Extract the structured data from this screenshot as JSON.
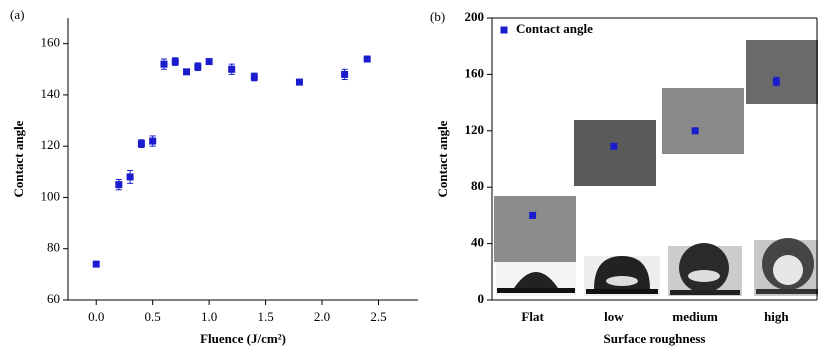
{
  "chart_data": [
    {
      "type": "scatter",
      "label": "(a)",
      "x_label": "Fluence (J/cm²)",
      "y_label": "Contact angle",
      "series": [
        {
          "color": "#1c1ccf",
          "x": [
            0.0,
            0.2,
            0.3,
            0.4,
            0.5,
            0.6,
            0.7,
            0.8,
            0.9,
            1.0,
            1.2,
            1.4,
            1.8,
            2.2,
            2.4
          ],
          "values": [
            74,
            105,
            108,
            121,
            122,
            152,
            153,
            149,
            151,
            153,
            150,
            147,
            145,
            148,
            154
          ],
          "errors": [
            1,
            2,
            2.5,
            1.5,
            2,
            2,
            1.5,
            1,
            1.5,
            1,
            2,
            1.5,
            1,
            2,
            1
          ]
        }
      ],
      "xlim": [
        -0.25,
        2.85
      ],
      "ylim": [
        60,
        170
      ],
      "xticks": [
        {
          "value": 0,
          "label": "0.0"
        },
        0.5,
        {
          "value": 1,
          "label": "1.0"
        },
        1.5,
        {
          "value": 2,
          "label": "2.0"
        },
        2.5
      ],
      "yticks": [
        60,
        80,
        100,
        120,
        140,
        160
      ]
    },
    {
      "type": "scatter",
      "label": "(b)",
      "x_label": "Surface roughness",
      "y_label": "Contact angle",
      "categories": [
        "Flat",
        "low",
        "medium",
        "high"
      ],
      "series": [
        {
          "name": "Contact angle",
          "color": "#1c1ccf",
          "values": [
            60,
            109,
            120,
            155
          ],
          "errors": [
            1,
            1.5,
            1.5,
            3
          ]
        }
      ],
      "ylim": [
        0,
        200
      ],
      "yticks": [
        0,
        40,
        80,
        120,
        160,
        200
      ],
      "legend": "upper left"
    }
  ]
}
